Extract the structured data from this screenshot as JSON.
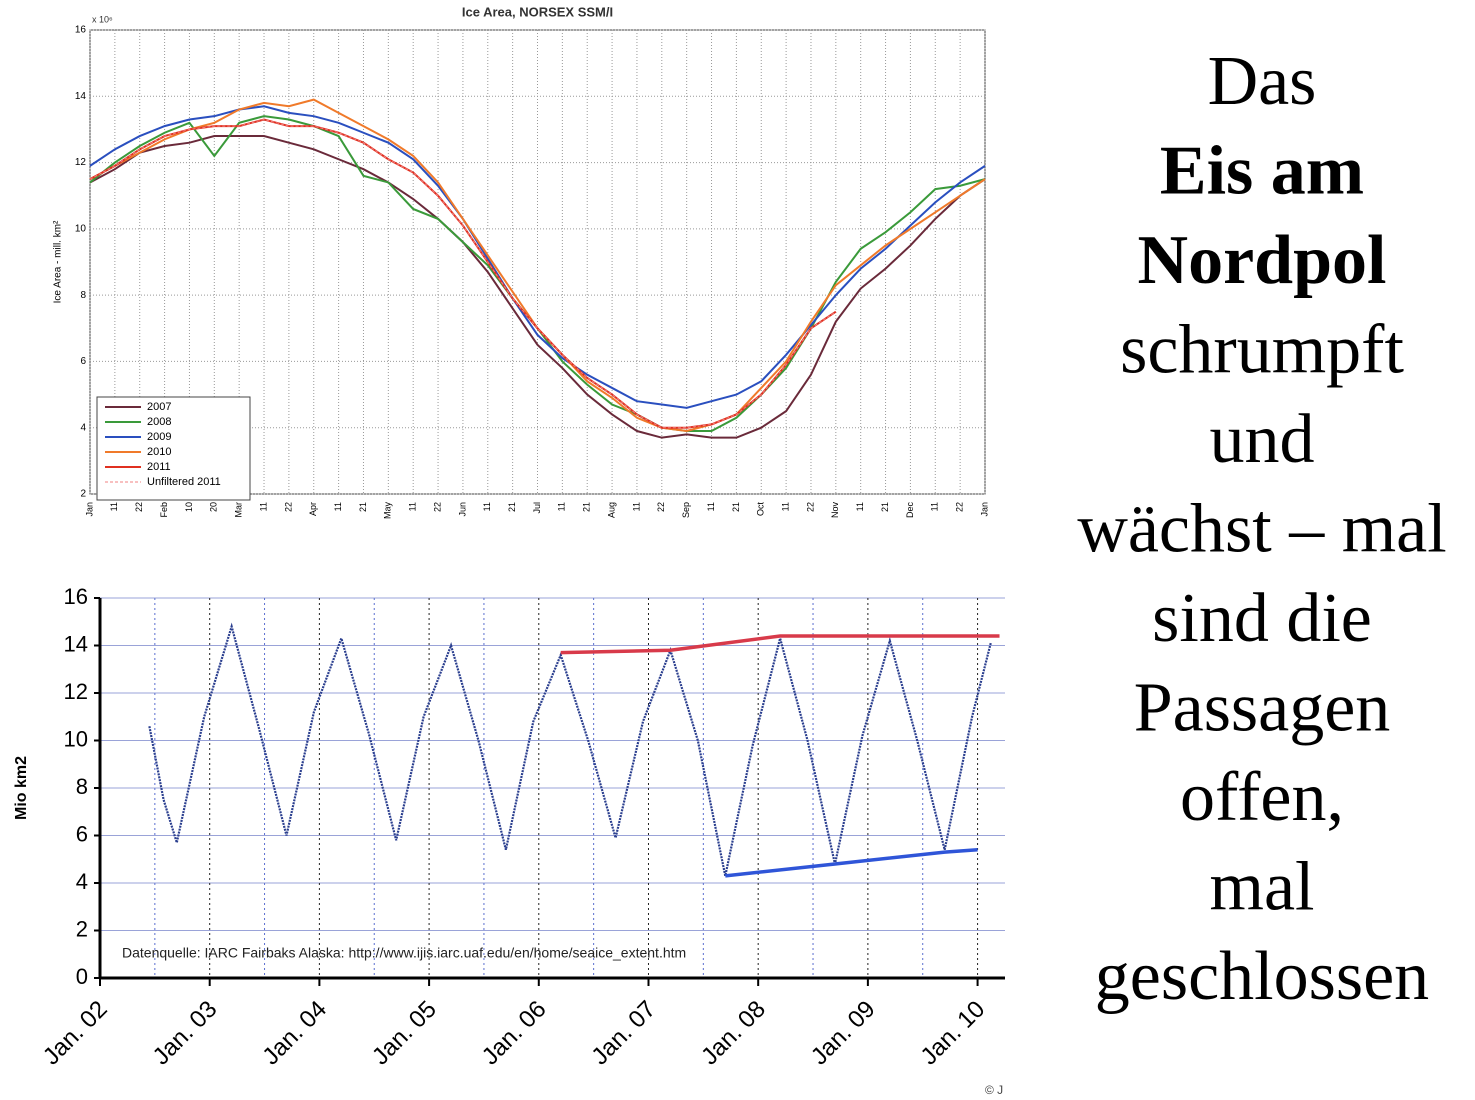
{
  "chart_data": [
    {
      "type": "line",
      "title": "Ice Area, NORSEX SSM/I",
      "ylabel": "Ice Area - mill. km²",
      "y_multiplier": "x 10⁶",
      "categories": [
        "Jan",
        "11",
        "22",
        "Feb",
        "10",
        "20",
        "Mar",
        "11",
        "22",
        "Apr",
        "11",
        "21",
        "May",
        "11",
        "22",
        "Jun",
        "11",
        "21",
        "Jul",
        "11",
        "21",
        "Aug",
        "11",
        "22",
        "Sep",
        "11",
        "21",
        "Oct",
        "11",
        "22",
        "Nov",
        "11",
        "21",
        "Dec",
        "11",
        "22",
        "Jan"
      ],
      "ylim": [
        2,
        16
      ],
      "yticks": [
        2,
        4,
        6,
        8,
        10,
        12,
        14,
        16
      ],
      "grid": true,
      "legend": "lower-left",
      "series": [
        {
          "name": "2007",
          "color": "#6a2a3a",
          "values": [
            11.4,
            11.8,
            12.3,
            12.5,
            12.6,
            12.8,
            12.8,
            12.8,
            12.6,
            12.4,
            12.1,
            11.8,
            11.4,
            10.9,
            10.3,
            9.6,
            8.7,
            7.6,
            6.5,
            5.8,
            5.0,
            4.4,
            3.9,
            3.7,
            3.8,
            3.7,
            3.7,
            4.0,
            4.5,
            5.6,
            7.2,
            8.2,
            8.8,
            9.5,
            10.3,
            11.0,
            11.5
          ]
        },
        {
          "name": "2008",
          "color": "#3a9a3a",
          "values": [
            11.4,
            12.0,
            12.5,
            12.9,
            13.2,
            12.2,
            13.2,
            13.4,
            13.3,
            13.1,
            12.8,
            11.6,
            11.4,
            10.6,
            10.3,
            9.6,
            8.9,
            7.9,
            7.0,
            6.0,
            5.3,
            4.7,
            4.4,
            4.0,
            3.9,
            3.9,
            4.3,
            5.0,
            5.8,
            7.0,
            8.4,
            9.4,
            9.9,
            10.5,
            11.2,
            11.3,
            11.5
          ]
        },
        {
          "name": "2009",
          "color": "#2a4fbf",
          "values": [
            11.9,
            12.4,
            12.8,
            13.1,
            13.3,
            13.4,
            13.6,
            13.7,
            13.5,
            13.4,
            13.2,
            12.9,
            12.6,
            12.1,
            11.3,
            10.3,
            9.1,
            7.9,
            6.8,
            6.1,
            5.6,
            5.2,
            4.8,
            4.7,
            4.6,
            4.8,
            5.0,
            5.4,
            6.2,
            7.1,
            8.0,
            8.8,
            9.4,
            10.1,
            10.8,
            11.4,
            11.9
          ]
        },
        {
          "name": "2010",
          "color": "#f07a2a",
          "values": [
            11.5,
            11.9,
            12.3,
            12.7,
            13.0,
            13.2,
            13.6,
            13.8,
            13.7,
            13.9,
            13.5,
            13.1,
            12.7,
            12.2,
            11.4,
            10.3,
            9.2,
            8.1,
            7.0,
            6.2,
            5.4,
            4.9,
            4.3,
            4.0,
            3.9,
            4.1,
            4.4,
            5.2,
            6.0,
            7.2,
            8.3,
            8.9,
            9.5,
            10.0,
            10.5,
            11.0,
            11.5
          ]
        },
        {
          "name": "2011",
          "color": "#e03020",
          "values": [
            11.5,
            11.9,
            12.4,
            12.8,
            13.0,
            13.1,
            13.1,
            13.3,
            13.1,
            13.1,
            12.9,
            12.6,
            12.1,
            11.7,
            11.0,
            10.1,
            9.0,
            7.9,
            7.0,
            6.2,
            5.5,
            5.0,
            4.4,
            4.0,
            4.0,
            4.1,
            4.4,
            5.0,
            5.9,
            7.0,
            7.5,
            null,
            null,
            null,
            null,
            null,
            null
          ]
        },
        {
          "name": "Unfiltered 2011",
          "color": "#f08080",
          "dashed": true,
          "values": [
            11.5,
            11.9,
            12.4,
            12.8,
            13.0,
            13.1,
            13.1,
            13.3,
            13.1,
            13.1,
            12.9,
            12.6,
            12.1,
            11.7,
            11.0,
            10.1,
            9.0,
            7.9,
            7.0,
            6.2,
            5.5,
            5.0,
            4.4,
            4.0,
            4.0,
            4.1,
            4.4,
            5.0,
            5.9,
            7.0,
            7.5,
            null,
            null,
            null,
            null,
            null,
            null
          ]
        }
      ]
    },
    {
      "type": "line",
      "ylabel": "Mio km2",
      "note": "Datenquelle: IARC Fairbaks Alaska:  http://www.ijis.iarc.uaf.edu/en/home/seaice_extent.htm",
      "credit": "© J",
      "xlim": [
        2002,
        2010.25
      ],
      "ylim": [
        0,
        16
      ],
      "yticks": [
        0,
        2,
        4,
        6,
        8,
        10,
        12,
        14,
        16
      ],
      "grid": true,
      "xticks": [
        {
          "value": 2002,
          "label": "Jan. 02"
        },
        {
          "value": 2003,
          "label": "Jan. 03"
        },
        {
          "value": 2004,
          "label": "Jan. 04"
        },
        {
          "value": 2005,
          "label": "Jan. 05"
        },
        {
          "value": 2006,
          "label": "Jan. 06"
        },
        {
          "value": 2007,
          "label": "Jan. 07"
        },
        {
          "value": 2008,
          "label": "Jan. 08"
        },
        {
          "value": 2009,
          "label": "Jan. 09"
        },
        {
          "value": 2010,
          "label": "Jan. 10"
        }
      ],
      "minor_xticks": [
        2002.5,
        2003.5,
        2004.5,
        2005.5,
        2006.5,
        2007.5,
        2008.5,
        2009.5
      ],
      "series": [
        {
          "color": "#2b3f8f",
          "dashed": true,
          "x": [
            2002.45,
            2002.58,
            2002.7,
            2002.95,
            2003.2,
            2003.45,
            2003.7,
            2003.95,
            2004.2,
            2004.45,
            2004.7,
            2004.95,
            2005.2,
            2005.45,
            2005.7,
            2005.95,
            2006.2,
            2006.45,
            2006.7,
            2006.95,
            2007.2,
            2007.45,
            2007.7,
            2007.95,
            2008.2,
            2008.45,
            2008.7,
            2008.95,
            2009.2,
            2009.45,
            2009.7,
            2009.95,
            2010.12
          ],
          "values": [
            10.6,
            7.5,
            5.7,
            11.0,
            14.8,
            10.5,
            6.0,
            11.2,
            14.3,
            10.3,
            5.8,
            11.0,
            14.0,
            10.0,
            5.4,
            10.8,
            13.6,
            10.0,
            5.9,
            10.8,
            13.8,
            10.0,
            4.3,
            9.8,
            14.3,
            10.0,
            4.8,
            10.2,
            14.2,
            10.0,
            5.4,
            11.0,
            14.1
          ]
        },
        {
          "color": "#d83a4a",
          "x": [
            2006.2,
            2007.2,
            2008.2,
            2010.2
          ],
          "values": [
            13.7,
            13.8,
            14.4,
            14.4
          ]
        },
        {
          "color": "#2f55d8",
          "x": [
            2007.7,
            2008.7,
            2009.7,
            2010.0
          ],
          "values": [
            4.3,
            4.8,
            5.3,
            5.4
          ]
        }
      ]
    }
  ],
  "slide": {
    "lines": [
      {
        "text": "Das",
        "bold": false
      },
      {
        "text": "Eis am",
        "bold": true
      },
      {
        "text": "Nordpol",
        "bold": true
      },
      {
        "text": "schrumpft",
        "bold": false
      },
      {
        "text": "und",
        "bold": false
      },
      {
        "text": "wächst – mal",
        "bold": false
      },
      {
        "text": "sind die",
        "bold": false
      },
      {
        "text": "Passagen",
        "bold": false
      },
      {
        "text": "offen,",
        "bold": false
      },
      {
        "text": "mal",
        "bold": false
      },
      {
        "text": "geschlossen",
        "bold": false
      }
    ]
  }
}
